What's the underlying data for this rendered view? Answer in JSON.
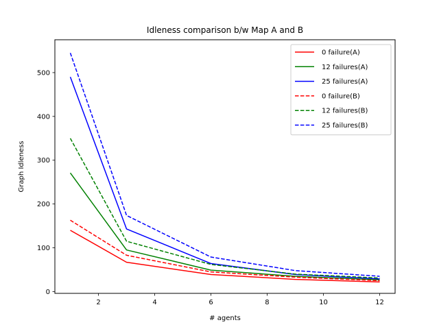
{
  "chart_data": {
    "type": "line",
    "title": "Idleness comparison b/w Map A and B",
    "xlabel": "# agents",
    "ylabel": "Graph Idleness",
    "xlim": [
      0.45,
      12.55
    ],
    "ylim": [
      -4,
      575
    ],
    "xticks": [
      2,
      4,
      6,
      8,
      10,
      12
    ],
    "yticks": [
      0,
      100,
      200,
      300,
      400,
      500
    ],
    "x": [
      1,
      3,
      6,
      9,
      12
    ],
    "grid": false,
    "legend_position": "upper right",
    "series": [
      {
        "name": "0 failure(A)",
        "color": "#ff0000",
        "style": "solid",
        "values": [
          140,
          67,
          39,
          28,
          22
        ]
      },
      {
        "name": "12 failures(A)",
        "color": "#008000",
        "style": "solid",
        "values": [
          271,
          95,
          49,
          35,
          27
        ]
      },
      {
        "name": "25 failures(A)",
        "color": "#0000ff",
        "style": "solid",
        "values": [
          490,
          143,
          64,
          39,
          29
        ]
      },
      {
        "name": "0 failure(B)",
        "color": "#ff0000",
        "style": "dashed",
        "values": [
          163,
          83,
          45,
          33,
          25
        ]
      },
      {
        "name": "12 failures(B)",
        "color": "#008000",
        "style": "dashed",
        "values": [
          350,
          115,
          62,
          40,
          31
        ]
      },
      {
        "name": "25 failures(B)",
        "color": "#0000ff",
        "style": "dashed",
        "values": [
          545,
          174,
          79,
          48,
          35
        ]
      }
    ]
  }
}
